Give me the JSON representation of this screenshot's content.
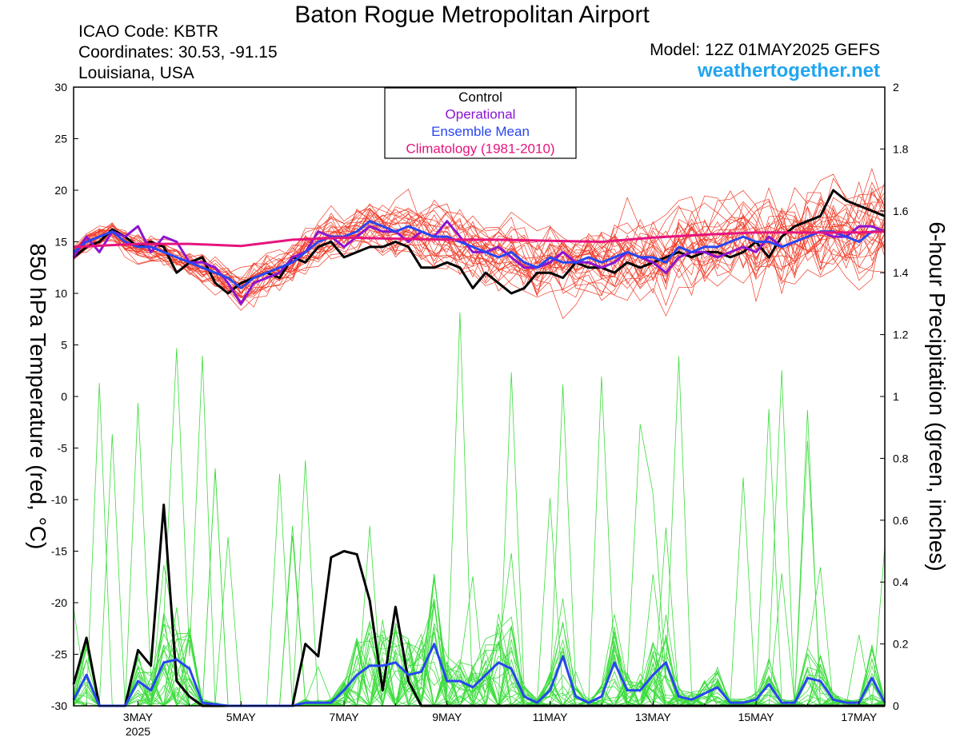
{
  "header": {
    "title": "Baton Rogue Metropolitan Airport",
    "icao": "ICAO Code: KBTR",
    "coordinates": "Coordinates: 30.53, -91.15",
    "location": "Louisiana, USA",
    "model": "Model: 12Z 01MAY2025 GEFS",
    "site": "weathertogether.net"
  },
  "colors": {
    "members_temp": "#f03c28",
    "members_precip": "#3cdc3c",
    "control": "#000000",
    "operational": "#8c14d2",
    "ensemble_mean": "#2846f0",
    "climatology": "#e6147d"
  },
  "chart_data": {
    "type": "line",
    "title": "Baton Rogue Metropolitan Airport",
    "ylabel": "850 hPa Temperature (red, °C)",
    "y2label": "6-hour Precipitation (green, inches)",
    "xlim": [
      "2025-05-01T18:00",
      "2025-05-17T12:00"
    ],
    "ylim": [
      -30,
      30
    ],
    "y2lim": [
      0,
      2
    ],
    "x_ticks": [
      {
        "date": "2025-05-03",
        "label": "3MAY",
        "sublabel": "2025"
      },
      {
        "date": "2025-05-05",
        "label": "5MAY",
        "sublabel": ""
      },
      {
        "date": "2025-05-07",
        "label": "7MAY",
        "sublabel": ""
      },
      {
        "date": "2025-05-09",
        "label": "9MAY",
        "sublabel": ""
      },
      {
        "date": "2025-05-11",
        "label": "11MAY",
        "sublabel": ""
      },
      {
        "date": "2025-05-13",
        "label": "13MAY",
        "sublabel": ""
      },
      {
        "date": "2025-05-15",
        "label": "15MAY",
        "sublabel": ""
      },
      {
        "date": "2025-05-17",
        "label": "17MAY",
        "sublabel": ""
      }
    ],
    "y_ticks": [
      "30",
      "25",
      "20",
      "15",
      "10",
      "5",
      "0",
      "-5",
      "-10",
      "-15",
      "-20",
      "-25",
      "-30"
    ],
    "y2_ticks": [
      "2",
      "1.8",
      "1.6",
      "1.4",
      "1.2",
      "1",
      "0.8",
      "0.6",
      "0.4",
      "0.2",
      "0"
    ],
    "legend": {
      "placement": "top-center",
      "entries": [
        {
          "label": "Control",
          "color": "#000000"
        },
        {
          "label": "Operational",
          "color": "#8c14d2"
        },
        {
          "label": "Ensemble Mean",
          "color": "#2846f0"
        },
        {
          "label": "Climatology (1981-2010)",
          "color": "#e6147d"
        }
      ]
    },
    "series": [
      {
        "name": "Control",
        "axis": "left",
        "color": "#000000",
        "x": [
          "2025-05-01T18:00",
          "2025-05-02T00:00",
          "2025-05-02T06:00",
          "2025-05-02T12:00",
          "2025-05-02T18:00",
          "2025-05-03T00:00",
          "2025-05-03T06:00",
          "2025-05-03T12:00",
          "2025-05-03T18:00",
          "2025-05-04T00:00",
          "2025-05-04T06:00",
          "2025-05-04T12:00",
          "2025-05-04T18:00",
          "2025-05-05T00:00",
          "2025-05-05T06:00",
          "2025-05-05T12:00",
          "2025-05-05T18:00",
          "2025-05-06T00:00",
          "2025-05-06T06:00",
          "2025-05-06T12:00",
          "2025-05-06T18:00",
          "2025-05-07T00:00",
          "2025-05-07T06:00",
          "2025-05-07T12:00",
          "2025-05-07T18:00",
          "2025-05-08T00:00",
          "2025-05-08T06:00",
          "2025-05-08T12:00",
          "2025-05-08T18:00",
          "2025-05-09T00:00",
          "2025-05-09T06:00",
          "2025-05-09T12:00",
          "2025-05-09T18:00",
          "2025-05-10T00:00",
          "2025-05-10T06:00",
          "2025-05-10T12:00",
          "2025-05-10T18:00",
          "2025-05-11T00:00",
          "2025-05-11T06:00",
          "2025-05-11T12:00",
          "2025-05-11T18:00",
          "2025-05-12T00:00",
          "2025-05-12T06:00",
          "2025-05-12T12:00",
          "2025-05-12T18:00",
          "2025-05-13T00:00",
          "2025-05-13T06:00",
          "2025-05-13T12:00",
          "2025-05-13T18:00",
          "2025-05-14T00:00",
          "2025-05-14T06:00",
          "2025-05-14T12:00",
          "2025-05-14T18:00",
          "2025-05-15T00:00",
          "2025-05-15T06:00",
          "2025-05-15T12:00",
          "2025-05-15T18:00",
          "2025-05-16T00:00",
          "2025-05-16T06:00",
          "2025-05-16T12:00",
          "2025-05-16T18:00",
          "2025-05-17T00:00",
          "2025-05-17T06:00",
          "2025-05-17T12:00"
        ],
        "y": [
          13.5,
          14.5,
          15,
          16.2,
          15.5,
          14.5,
          15,
          14.5,
          12,
          13,
          13.5,
          11,
          10,
          11,
          11.5,
          12,
          11.5,
          13.5,
          13,
          14.5,
          15,
          13.5,
          14,
          14.5,
          14.5,
          15,
          14.5,
          12.5,
          12.5,
          13,
          12.5,
          10.5,
          12,
          11,
          10,
          10.5,
          12,
          12,
          11.5,
          13,
          12.5,
          12.5,
          12,
          13,
          12.5,
          13,
          13.5,
          14,
          13.5,
          14,
          14,
          13.5,
          14,
          15,
          13.5,
          15.5,
          16.5,
          17,
          17.5,
          20,
          19,
          18.5,
          18,
          17.5
        ]
      },
      {
        "name": "Operational",
        "axis": "left",
        "color": "#8c14d2",
        "x": [
          "2025-05-01T18:00",
          "2025-05-02T00:00",
          "2025-05-02T06:00",
          "2025-05-02T12:00",
          "2025-05-02T18:00",
          "2025-05-03T00:00",
          "2025-05-03T06:00",
          "2025-05-03T12:00",
          "2025-05-03T18:00",
          "2025-05-04T00:00",
          "2025-05-04T06:00",
          "2025-05-04T12:00",
          "2025-05-04T18:00",
          "2025-05-05T00:00",
          "2025-05-05T06:00",
          "2025-05-05T12:00",
          "2025-05-05T18:00",
          "2025-05-06T00:00",
          "2025-05-06T06:00",
          "2025-05-06T12:00",
          "2025-05-06T18:00",
          "2025-05-07T00:00",
          "2025-05-07T06:00",
          "2025-05-07T12:00",
          "2025-05-07T18:00",
          "2025-05-08T00:00",
          "2025-05-08T06:00",
          "2025-05-08T12:00",
          "2025-05-08T18:00",
          "2025-05-09T00:00",
          "2025-05-09T06:00",
          "2025-05-09T12:00",
          "2025-05-09T18:00",
          "2025-05-10T00:00",
          "2025-05-10T06:00",
          "2025-05-10T12:00",
          "2025-05-10T18:00",
          "2025-05-11T00:00",
          "2025-05-11T06:00",
          "2025-05-11T12:00",
          "2025-05-11T18:00",
          "2025-05-12T00:00",
          "2025-05-12T06:00",
          "2025-05-12T12:00",
          "2025-05-12T18:00",
          "2025-05-13T00:00",
          "2025-05-13T06:00",
          "2025-05-13T12:00",
          "2025-05-13T18:00",
          "2025-05-14T00:00",
          "2025-05-14T06:00",
          "2025-05-14T12:00",
          "2025-05-14T18:00",
          "2025-05-15T00:00",
          "2025-05-15T06:00",
          "2025-05-15T12:00",
          "2025-05-15T18:00",
          "2025-05-16T00:00",
          "2025-05-16T06:00",
          "2025-05-16T12:00",
          "2025-05-16T18:00",
          "2025-05-17T00:00",
          "2025-05-17T06:00",
          "2025-05-17T12:00"
        ],
        "y": [
          13.5,
          15.5,
          14,
          16,
          15.5,
          16.5,
          14,
          15.5,
          15,
          13,
          13,
          12.5,
          11,
          9,
          11,
          11.5,
          12,
          13.5,
          14,
          16,
          15.5,
          14.5,
          15.5,
          16.5,
          16,
          16,
          15,
          16,
          15.5,
          17,
          15.5,
          14,
          14,
          14.5,
          13.5,
          12.5,
          12.5,
          13,
          14,
          13,
          13,
          12.5,
          13,
          14,
          13.5,
          13,
          12,
          13.5,
          14,
          14,
          13.5,
          14,
          14.5,
          14,
          15.5,
          14.5,
          15,
          15.5,
          16,
          15.5,
          15.5,
          16.5,
          16.5,
          16
        ]
      },
      {
        "name": "Ensemble Mean",
        "axis": "left",
        "color": "#2846f0",
        "x": [
          "2025-05-01T18:00",
          "2025-05-02T00:00",
          "2025-05-02T06:00",
          "2025-05-02T12:00",
          "2025-05-02T18:00",
          "2025-05-03T00:00",
          "2025-05-03T06:00",
          "2025-05-03T12:00",
          "2025-05-03T18:00",
          "2025-05-04T00:00",
          "2025-05-04T06:00",
          "2025-05-04T12:00",
          "2025-05-04T18:00",
          "2025-05-05T00:00",
          "2025-05-05T06:00",
          "2025-05-05T12:00",
          "2025-05-05T18:00",
          "2025-05-06T00:00",
          "2025-05-06T06:00",
          "2025-05-06T12:00",
          "2025-05-06T18:00",
          "2025-05-07T00:00",
          "2025-05-07T06:00",
          "2025-05-07T12:00",
          "2025-05-07T18:00",
          "2025-05-08T00:00",
          "2025-05-08T06:00",
          "2025-05-08T12:00",
          "2025-05-08T18:00",
          "2025-05-09T00:00",
          "2025-05-09T06:00",
          "2025-05-09T12:00",
          "2025-05-09T18:00",
          "2025-05-10T00:00",
          "2025-05-10T06:00",
          "2025-05-10T12:00",
          "2025-05-10T18:00",
          "2025-05-11T00:00",
          "2025-05-11T06:00",
          "2025-05-11T12:00",
          "2025-05-11T18:00",
          "2025-05-12T00:00",
          "2025-05-12T06:00",
          "2025-05-12T12:00",
          "2025-05-12T18:00",
          "2025-05-13T00:00",
          "2025-05-13T06:00",
          "2025-05-13T12:00",
          "2025-05-13T18:00",
          "2025-05-14T00:00",
          "2025-05-14T06:00",
          "2025-05-14T12:00",
          "2025-05-14T18:00",
          "2025-05-15T00:00",
          "2025-05-15T06:00",
          "2025-05-15T12:00",
          "2025-05-15T18:00",
          "2025-05-16T00:00",
          "2025-05-16T06:00",
          "2025-05-16T12:00",
          "2025-05-16T18:00",
          "2025-05-17T00:00",
          "2025-05-17T06:00",
          "2025-05-17T12:00"
        ],
        "y": [
          14,
          15,
          15.5,
          16,
          15,
          14.5,
          14.5,
          14,
          13.5,
          13,
          12.5,
          12,
          11.5,
          10.5,
          11.5,
          12,
          12.5,
          13,
          14,
          15,
          15.5,
          15.5,
          16,
          17,
          16.5,
          16,
          16.5,
          16,
          15.5,
          15.5,
          15,
          14.5,
          14,
          13.5,
          14,
          13,
          12.5,
          13.5,
          13,
          13,
          13.5,
          13,
          13.5,
          14,
          13.5,
          13.5,
          13,
          14.5,
          14,
          14.5,
          14.5,
          15,
          15.5,
          15,
          15,
          14.5,
          15,
          15.5,
          16,
          16,
          15.5,
          15,
          16,
          16
        ]
      },
      {
        "name": "Climatology (1981-2010)",
        "axis": "left",
        "color": "#e6147d",
        "x": [
          "2025-05-01T18:00",
          "2025-05-03T00:00",
          "2025-05-04T00:00",
          "2025-05-05T00:00",
          "2025-05-06T00:00",
          "2025-05-07T00:00",
          "2025-05-08T00:00",
          "2025-05-09T00:00",
          "2025-05-10T00:00",
          "2025-05-11T00:00",
          "2025-05-12T00:00",
          "2025-05-13T00:00",
          "2025-05-14T00:00",
          "2025-05-15T00:00",
          "2025-05-16T00:00",
          "2025-05-17T00:00",
          "2025-05-17T12:00"
        ],
        "y": [
          14.5,
          14.8,
          14.8,
          14.6,
          15.2,
          15.4,
          15.3,
          15.2,
          15.2,
          15.1,
          15.0,
          15.4,
          15.7,
          15.9,
          15.9,
          15.9,
          16.0
        ]
      }
    ],
    "precip_series": [
      {
        "name": "Control",
        "axis": "right",
        "color": "#000000",
        "x": [
          "2025-05-01T18:00",
          "2025-05-02T00:00",
          "2025-05-02T06:00",
          "2025-05-02T12:00",
          "2025-05-02T18:00",
          "2025-05-03T00:00",
          "2025-05-03T06:00",
          "2025-05-03T12:00",
          "2025-05-03T18:00",
          "2025-05-04T00:00",
          "2025-05-04T06:00",
          "2025-05-04T12:00",
          "2025-05-05T00:00",
          "2025-05-06T00:00",
          "2025-05-06T06:00",
          "2025-05-06T12:00",
          "2025-05-06T18:00",
          "2025-05-07T00:00",
          "2025-05-07T06:00",
          "2025-05-07T12:00",
          "2025-05-07T18:00",
          "2025-05-08T00:00",
          "2025-05-08T06:00",
          "2025-05-08T12:00",
          "2025-05-08T18:00",
          "2025-05-09T00:00",
          "2025-05-17T12:00"
        ],
        "y": [
          0.07,
          0.22,
          0,
          0,
          0,
          0.18,
          0.13,
          0.65,
          0.08,
          0.03,
          0,
          0,
          0,
          0,
          0.2,
          0.16,
          0.48,
          0.5,
          0.49,
          0.34,
          0.05,
          0.32,
          0.08,
          0,
          0,
          0,
          0
        ]
      },
      {
        "name": "Ensemble Mean",
        "axis": "right",
        "color": "#2846f0",
        "x": [
          "2025-05-01T18:00",
          "2025-05-02T00:00",
          "2025-05-02T06:00",
          "2025-05-02T12:00",
          "2025-05-02T18:00",
          "2025-05-03T00:00",
          "2025-05-03T06:00",
          "2025-05-03T12:00",
          "2025-05-03T18:00",
          "2025-05-04T00:00",
          "2025-05-04T06:00",
          "2025-05-04T12:00",
          "2025-05-04T18:00",
          "2025-05-05T00:00",
          "2025-05-05T06:00",
          "2025-05-05T12:00",
          "2025-05-05T18:00",
          "2025-05-06T00:00",
          "2025-05-06T06:00",
          "2025-05-06T12:00",
          "2025-05-06T18:00",
          "2025-05-07T00:00",
          "2025-05-07T06:00",
          "2025-05-07T12:00",
          "2025-05-07T18:00",
          "2025-05-08T00:00",
          "2025-05-08T06:00",
          "2025-05-08T12:00",
          "2025-05-08T18:00",
          "2025-05-09T00:00",
          "2025-05-09T06:00",
          "2025-05-09T12:00",
          "2025-05-09T18:00",
          "2025-05-10T00:00",
          "2025-05-10T06:00",
          "2025-05-10T12:00",
          "2025-05-10T18:00",
          "2025-05-11T00:00",
          "2025-05-11T06:00",
          "2025-05-11T12:00",
          "2025-05-11T18:00",
          "2025-05-12T00:00",
          "2025-05-12T06:00",
          "2025-05-12T12:00",
          "2025-05-12T18:00",
          "2025-05-13T00:00",
          "2025-05-13T06:00",
          "2025-05-13T12:00",
          "2025-05-13T18:00",
          "2025-05-14T00:00",
          "2025-05-14T06:00",
          "2025-05-14T12:00",
          "2025-05-14T18:00",
          "2025-05-15T00:00",
          "2025-05-15T06:00",
          "2025-05-15T12:00",
          "2025-05-15T18:00",
          "2025-05-16T00:00",
          "2025-05-16T06:00",
          "2025-05-16T12:00",
          "2025-05-16T18:00",
          "2025-05-17T00:00",
          "2025-05-17T06:00",
          "2025-05-17T12:00"
        ],
        "y": [
          0.02,
          0.1,
          0,
          0,
          0,
          0.08,
          0.05,
          0.14,
          0.15,
          0.12,
          0.01,
          0.005,
          0,
          0,
          0,
          0,
          0,
          0,
          0.01,
          0.01,
          0.01,
          0.05,
          0.1,
          0.13,
          0.13,
          0.14,
          0.1,
          0.11,
          0.2,
          0.08,
          0.08,
          0.06,
          0.1,
          0.14,
          0.12,
          0.03,
          0.01,
          0.05,
          0.16,
          0.03,
          0.01,
          0.03,
          0.14,
          0.05,
          0.05,
          0.1,
          0.14,
          0.03,
          0.02,
          0.04,
          0.06,
          0.01,
          0.01,
          0.02,
          0.07,
          0.01,
          0.01,
          0.09,
          0.08,
          0.02,
          0.01,
          0.01,
          0.09,
          0.01
        ]
      }
    ]
  }
}
